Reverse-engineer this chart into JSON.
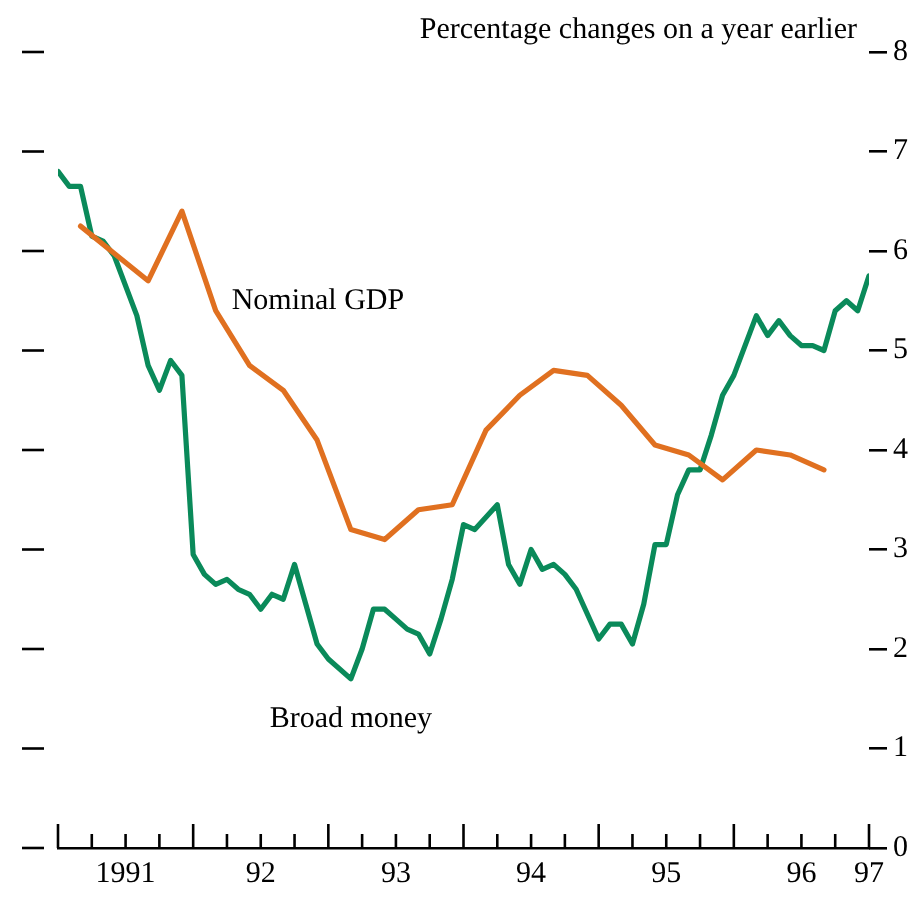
{
  "chart_data": {
    "type": "line",
    "ylabel": "Percentage changes on a year earlier",
    "xlim": [
      "1991-01",
      "1997-01"
    ],
    "xticks": [
      {
        "value": "1991-01",
        "label": null
      },
      {
        "value": "1991-04",
        "label": null
      },
      {
        "value": "1991-07",
        "label": "1991"
      },
      {
        "value": "1991-10",
        "label": null
      },
      {
        "value": "1992-01",
        "label": null
      },
      {
        "value": "1992-04",
        "label": null
      },
      {
        "value": "1992-07",
        "label": "92"
      },
      {
        "value": "1992-10",
        "label": null
      },
      {
        "value": "1993-01",
        "label": null
      },
      {
        "value": "1993-04",
        "label": null
      },
      {
        "value": "1993-07",
        "label": "93"
      },
      {
        "value": "1993-10",
        "label": null
      },
      {
        "value": "1994-01",
        "label": null
      },
      {
        "value": "1994-04",
        "label": null
      },
      {
        "value": "1994-07",
        "label": "94"
      },
      {
        "value": "1994-10",
        "label": null
      },
      {
        "value": "1995-01",
        "label": null
      },
      {
        "value": "1995-04",
        "label": null
      },
      {
        "value": "1995-07",
        "label": "95"
      },
      {
        "value": "1995-10",
        "label": null
      },
      {
        "value": "1996-01",
        "label": null
      },
      {
        "value": "1996-04",
        "label": null
      },
      {
        "value": "1996-07",
        "label": "96"
      },
      {
        "value": "1996-10",
        "label": null
      },
      {
        "value": "1997-01",
        "label": "97"
      }
    ],
    "ylim": [
      0,
      8
    ],
    "yticks": [
      0,
      1,
      2,
      3,
      4,
      5,
      6,
      7,
      8
    ],
    "grid": false,
    "legend": false,
    "marker": "none",
    "line_style": "solid",
    "series": [
      {
        "name": "Nominal GDP",
        "color": "#e07020",
        "x": [
          "1991-03",
          "1991-09",
          "1991-12",
          "1992-03",
          "1992-06",
          "1992-09",
          "1992-12",
          "1993-03",
          "1993-06",
          "1993-09",
          "1993-12",
          "1994-03",
          "1994-06",
          "1994-09",
          "1994-12",
          "1995-03",
          "1995-06",
          "1995-09",
          "1995-12",
          "1996-03",
          "1996-06",
          "1996-09"
        ],
        "values": [
          6.25,
          5.7,
          6.4,
          5.4,
          4.85,
          4.6,
          4.1,
          3.2,
          3.1,
          3.4,
          3.45,
          4.2,
          4.55,
          4.8,
          4.75,
          4.45,
          4.05,
          3.95,
          3.7,
          4.0,
          3.95,
          3.8
        ]
      },
      {
        "name": "Broad money",
        "color": "#0a8a5a",
        "x": [
          "1991-01",
          "1991-02",
          "1991-03",
          "1991-04",
          "1991-05",
          "1991-06",
          "1991-08",
          "1991-09",
          "1991-10",
          "1991-11",
          "1991-12",
          "1992-01",
          "1992-02",
          "1992-03",
          "1992-04",
          "1992-05",
          "1992-06",
          "1992-07",
          "1992-08",
          "1992-09",
          "1992-10",
          "1992-11",
          "1992-12",
          "1993-01",
          "1993-03",
          "1993-04",
          "1993-05",
          "1993-06",
          "1993-07",
          "1993-08",
          "1993-09",
          "1993-10",
          "1993-11",
          "1993-12",
          "1994-01",
          "1994-02",
          "1994-04",
          "1994-05",
          "1994-06",
          "1994-07",
          "1994-08",
          "1994-09",
          "1994-10",
          "1994-11",
          "1995-01",
          "1995-02",
          "1995-03",
          "1995-04",
          "1995-05",
          "1995-06",
          "1995-07",
          "1995-08",
          "1995-09",
          "1995-10",
          "1995-11",
          "1995-12",
          "1996-01",
          "1996-03",
          "1996-04",
          "1996-05",
          "1996-06",
          "1996-07",
          "1996-08",
          "1996-09",
          "1996-10",
          "1996-11",
          "1996-12",
          "1997-01"
        ],
        "values": [
          6.8,
          6.65,
          6.65,
          6.15,
          6.1,
          5.95,
          5.35,
          4.85,
          4.6,
          4.9,
          4.75,
          2.95,
          2.75,
          2.65,
          2.7,
          2.6,
          2.55,
          2.4,
          2.55,
          2.5,
          2.85,
          2.45,
          2.05,
          1.9,
          1.7,
          2.0,
          2.4,
          2.4,
          2.3,
          2.2,
          2.15,
          1.95,
          2.3,
          2.7,
          3.25,
          3.2,
          3.45,
          2.85,
          2.65,
          3.0,
          2.8,
          2.85,
          2.75,
          2.6,
          2.1,
          2.25,
          2.25,
          2.05,
          2.45,
          3.05,
          3.05,
          3.55,
          3.8,
          3.8,
          4.15,
          4.55,
          4.75,
          5.35,
          5.15,
          5.3,
          5.15,
          5.05,
          5.05,
          5.0,
          5.4,
          5.5,
          5.4,
          5.75
        ]
      }
    ]
  }
}
